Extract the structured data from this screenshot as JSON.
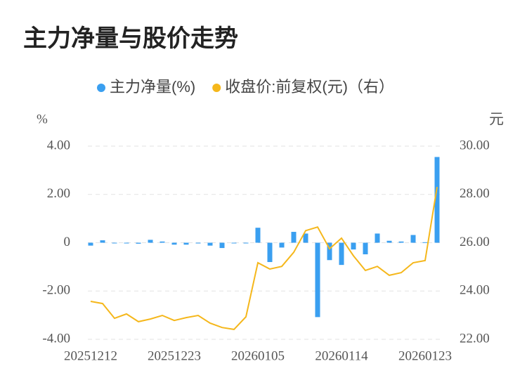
{
  "chart_data": {
    "type": "bar",
    "title": "主力净量与股价走势",
    "y_label": "%",
    "y2_label": "元",
    "categories": [
      "20251212",
      null,
      null,
      null,
      null,
      null,
      null,
      "20251223",
      null,
      null,
      null,
      null,
      null,
      null,
      "20260105",
      null,
      null,
      null,
      null,
      null,
      null,
      "20260114",
      null,
      null,
      null,
      null,
      null,
      null,
      "20260123",
      null
    ],
    "series": [
      {
        "name": "主力净量(%)",
        "type": "bar",
        "color": "#3a9ff0",
        "values": [
          -0.12,
          0.1,
          -0.02,
          -0.03,
          -0.04,
          0.12,
          0.05,
          -0.08,
          -0.08,
          -0.03,
          -0.12,
          -0.22,
          -0.02,
          -0.02,
          0.62,
          -0.8,
          -0.2,
          0.45,
          0.38,
          -3.08,
          -0.72,
          -0.92,
          -0.28,
          -0.48,
          0.38,
          0.08,
          0.05,
          0.32,
          0.02,
          3.55
        ]
      },
      {
        "name": "收盘价:前复权(元)（右）",
        "type": "line",
        "color": "#f5b71b",
        "axis": "y2",
        "values": [
          23.57,
          23.48,
          22.87,
          23.05,
          22.73,
          22.84,
          22.99,
          22.78,
          22.9,
          22.99,
          22.67,
          22.49,
          22.41,
          22.93,
          25.17,
          24.91,
          25.02,
          25.6,
          26.5,
          26.65,
          25.75,
          26.19,
          25.46,
          24.85,
          25.02,
          24.65,
          24.76,
          25.17,
          25.26,
          28.31
        ]
      }
    ],
    "ylim": [
      -4,
      4
    ],
    "yticks": [
      {
        "value": 4,
        "label": "4.00"
      },
      {
        "value": 2,
        "label": "2.00"
      },
      0,
      {
        "value": -2,
        "label": "-2.00"
      },
      {
        "value": -4,
        "label": "-4.00"
      }
    ],
    "y2lim": [
      22,
      30
    ],
    "y2ticks": [
      {
        "value": 30,
        "label": "30.00"
      },
      {
        "value": 28,
        "label": "28.00"
      },
      {
        "value": 26,
        "label": "26.00"
      },
      {
        "value": 24,
        "label": "24.00"
      },
      {
        "value": 22,
        "label": "22.00"
      }
    ],
    "grid": true,
    "legend": "top"
  }
}
